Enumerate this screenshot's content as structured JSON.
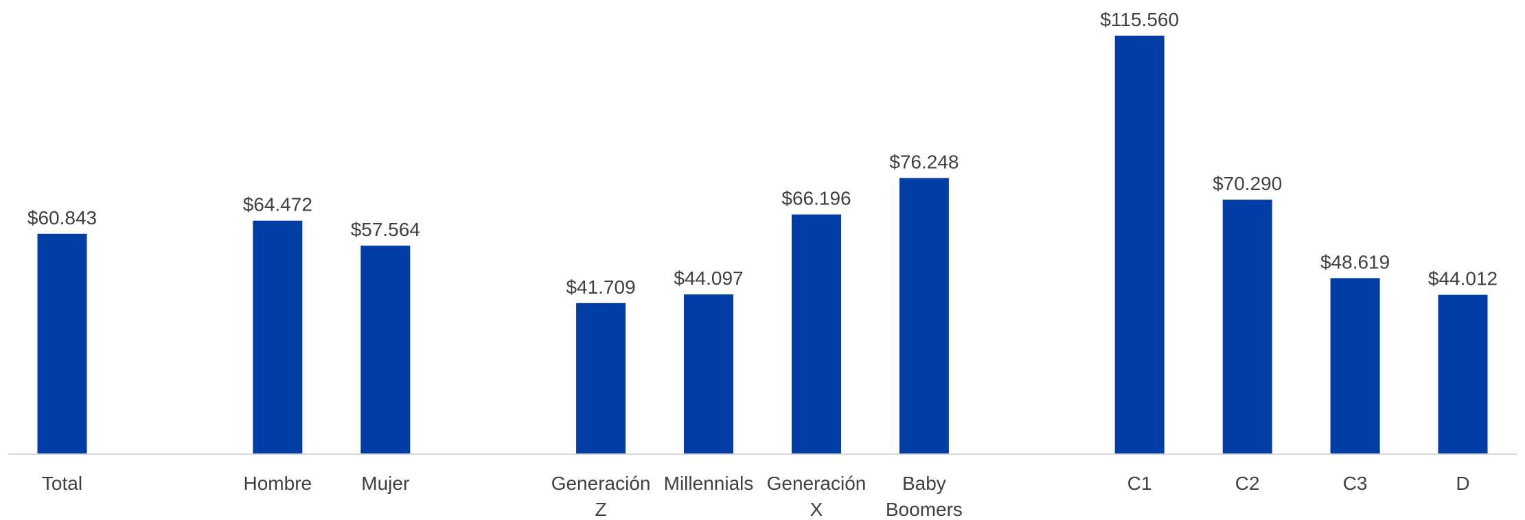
{
  "chart_data": {
    "type": "bar",
    "title": "",
    "xlabel": "",
    "ylabel": "",
    "bar_color": "#003DA5",
    "axis_color": "#D9D9D9",
    "text_color": "#404040",
    "ylim": [
      0,
      115560
    ],
    "grid": false,
    "categories": [
      "Total",
      "",
      "Hombre",
      "Mujer",
      "",
      "Generación Z",
      "Millennials",
      "Generación X",
      "Baby Boomers",
      "",
      "C1",
      "C2",
      "C3",
      "D"
    ],
    "values": [
      60843,
      null,
      64472,
      57564,
      null,
      41709,
      44097,
      66196,
      76248,
      null,
      115560,
      70290,
      48619,
      44012
    ],
    "labels": [
      "$60.843",
      "",
      "$64.472",
      "$57.564",
      "",
      "$41.709",
      "$44.097",
      "$66.196",
      "$76.248",
      "",
      "$115.560",
      "$70.290",
      "$48.619",
      "$44.012"
    ]
  }
}
